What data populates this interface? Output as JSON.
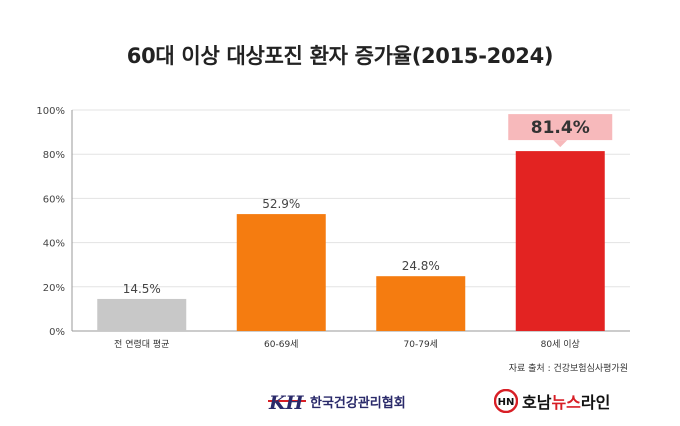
{
  "chart_data": {
    "type": "bar",
    "title": "60대 이상 대상포진 환자 증가율(2015-2024)",
    "categories": [
      "전 연령대 평균",
      "60-69세",
      "70-79세",
      "80세 이상"
    ],
    "values": [
      14.5,
      52.9,
      24.8,
      81.4
    ],
    "value_labels": [
      "14.5%",
      "52.9%",
      "24.8%",
      "81.4%"
    ],
    "yticks": [
      "0%",
      "20%",
      "40%",
      "60%",
      "80%",
      "100%"
    ],
    "ylim": [
      0,
      100
    ],
    "grid": true,
    "highlight_index": 3,
    "colors": {
      "average": "#c8c8c8",
      "age_group": "#f57c10",
      "highlight": "#e32322",
      "highlight_label_bg": "#f7b9bb"
    }
  },
  "source": "자료 출처 : 건강보험심사평가원",
  "logos": {
    "association_mark": "KH",
    "association_name": "한국건강관리협회",
    "news_mark": "HN",
    "news_name_1": "호남",
    "news_name_accent": "뉴스",
    "news_name_2": "라인"
  }
}
